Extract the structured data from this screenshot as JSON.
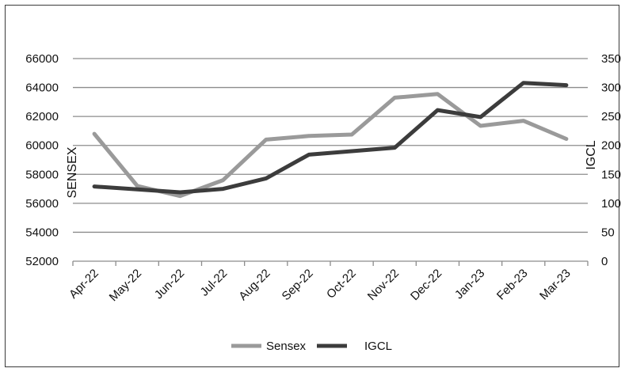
{
  "chart_data": {
    "type": "line",
    "title": "",
    "xlabel": "",
    "ylabel": "SENSEX",
    "y2label": "IGCL",
    "categories": [
      "Apr-22",
      "May-22",
      "Jun-22",
      "Jul-22",
      "Aug-22",
      "Sep-22",
      "Oct-22",
      "Nov-22",
      "Dec-22",
      "Jan-23",
      "Feb-23",
      "Mar-23"
    ],
    "ylim": [
      52000,
      66000
    ],
    "y2lim": [
      0,
      350
    ],
    "yticks": [
      "52000",
      "54000",
      "56000",
      "58000",
      "60000",
      "62000",
      "64000",
      "66000"
    ],
    "y2ticks": [
      "0",
      "50",
      "100",
      "150",
      "200",
      "250",
      "300",
      "350"
    ],
    "grid": true,
    "legend_position": "bottom",
    "series": [
      {
        "name": "Sensex",
        "axis": "left",
        "color": "#9a9a9a",
        "values": [
          60800,
          57200,
          56500,
          57600,
          60400,
          60650,
          60750,
          63300,
          63550,
          61350,
          61700,
          60450
        ]
      },
      {
        "name": "IGCL",
        "axis": "right",
        "color": "#3c3c3c",
        "values": [
          129,
          124,
          119,
          125,
          143,
          184,
          190,
          196,
          261,
          249,
          308,
          304
        ]
      }
    ]
  }
}
